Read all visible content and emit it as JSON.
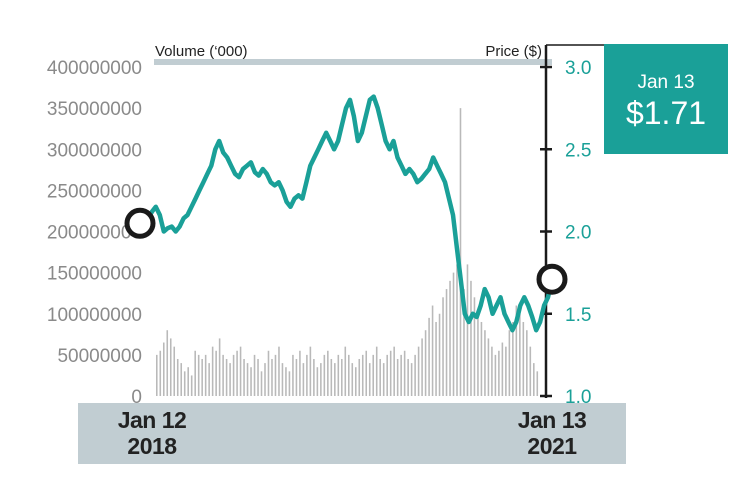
{
  "chart_data": {
    "type": "line",
    "title": "",
    "volume_label": "Volume (‘000)",
    "price_label": "Price ($)",
    "y_left": {
      "min": 0,
      "max": 400000000,
      "ticks": [
        "400000000",
        "350000000",
        "300000000",
        "250000000",
        "200000000",
        "150000000",
        "100000000",
        "50000000",
        "0"
      ]
    },
    "y_right": {
      "min": 1.0,
      "max": 3.0,
      "ticks": [
        "3.0",
        "2.5",
        "2.0",
        "1.5",
        "1.0"
      ]
    },
    "x_labels": {
      "start": {
        "line1": "Jan 12",
        "line2": "2018"
      },
      "end": {
        "line1": "Jan 13",
        "line2": "2021"
      }
    },
    "callout": {
      "date": "Jan 13",
      "price": "$1.71"
    },
    "series": [
      {
        "kind": "price",
        "values": [
          2.05,
          2.1,
          2.08,
          2.12,
          2.15,
          2.1,
          2.0,
          2.02,
          2.03,
          2.0,
          2.03,
          2.08,
          2.1,
          2.15,
          2.2,
          2.25,
          2.3,
          2.35,
          2.4,
          2.5,
          2.55,
          2.48,
          2.45,
          2.4,
          2.35,
          2.33,
          2.38,
          2.4,
          2.42,
          2.36,
          2.34,
          2.38,
          2.35,
          2.3,
          2.28,
          2.3,
          2.25,
          2.18,
          2.15,
          2.2,
          2.22,
          2.2,
          2.3,
          2.4,
          2.45,
          2.5,
          2.55,
          2.6,
          2.55,
          2.5,
          2.55,
          2.65,
          2.75,
          2.8,
          2.7,
          2.55,
          2.6,
          2.7,
          2.8,
          2.82,
          2.75,
          2.65,
          2.55,
          2.5,
          2.55,
          2.45,
          2.4,
          2.35,
          2.38,
          2.35,
          2.3,
          2.32,
          2.35,
          2.38,
          2.45,
          2.4,
          2.35,
          2.3,
          2.2,
          2.1,
          1.9,
          1.7,
          1.5,
          1.45,
          1.5,
          1.48,
          1.55,
          1.65,
          1.6,
          1.5,
          1.55,
          1.6,
          1.5,
          1.45,
          1.4,
          1.45,
          1.55,
          1.6,
          1.55,
          1.48,
          1.4,
          1.45,
          1.55,
          1.6,
          1.71
        ]
      },
      {
        "kind": "volume",
        "values": [
          50,
          55,
          65,
          80,
          70,
          60,
          45,
          40,
          30,
          35,
          25,
          55,
          50,
          45,
          50,
          40,
          60,
          55,
          70,
          50,
          45,
          40,
          50,
          55,
          60,
          45,
          40,
          35,
          50,
          45,
          30,
          40,
          55,
          45,
          50,
          60,
          40,
          35,
          30,
          50,
          45,
          55,
          40,
          50,
          60,
          45,
          35,
          40,
          50,
          55,
          45,
          40,
          50,
          45,
          60,
          50,
          40,
          35,
          45,
          50,
          55,
          40,
          50,
          60,
          45,
          40,
          50,
          55,
          60,
          45,
          50,
          55,
          45,
          40,
          50,
          60,
          70,
          80,
          95,
          110,
          90,
          100,
          120,
          130,
          140,
          150,
          160,
          350,
          130,
          160,
          140,
          120,
          100,
          90,
          80,
          70,
          60,
          50,
          55,
          65,
          60,
          80,
          90,
          110,
          100,
          90,
          80,
          60,
          40,
          30
        ]
      }
    ]
  }
}
